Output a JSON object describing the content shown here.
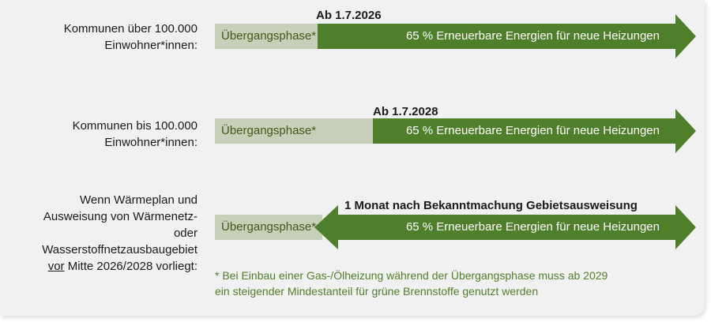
{
  "colors": {
    "transition": "#c6cfb8",
    "green": "#4f7f2a",
    "text": "#1a1a1a",
    "footnote": "#4f7f2a",
    "background": "#f1f1f1"
  },
  "rows": [
    {
      "label_line1": "Kommunen über 100.000",
      "label_line2": "Einwohner*innen:",
      "date": "Ab 1.7.2026",
      "transition_label": "Übergangsphase*",
      "green_label": "65 % Erneuerbare Energien für neue Heizungen"
    },
    {
      "label_line1": "Kommunen bis 100.000",
      "label_line2": "Einwohner*innen:",
      "date": "Ab 1.7.2028",
      "transition_label": "Übergangsphase*",
      "green_label": "65 % Erneuerbare Energien für neue Heizungen"
    },
    {
      "label_line1": "Wenn Wärmeplan und",
      "label_line2": "Ausweisung von Wärmenetz-",
      "label_line3": "oder Wasserstoffnetzausbaugebiet",
      "label_line4_underlined": "vor",
      "label_line4_rest": " Mitte 2026/2028 vorliegt:",
      "date": "1 Monat nach Bekanntmachung Gebietsausweisung",
      "transition_label": "Übergangsphase*",
      "green_label": "65 % Erneuerbare Energien für neue Heizungen"
    }
  ],
  "footnote": {
    "line1": "* Bei Einbau einer Gas-/Ölheizung während der Übergangsphase muss ab 2029",
    "line2": "ein steigender Mindestanteil für grüne Brennstoffe genutzt werden"
  }
}
